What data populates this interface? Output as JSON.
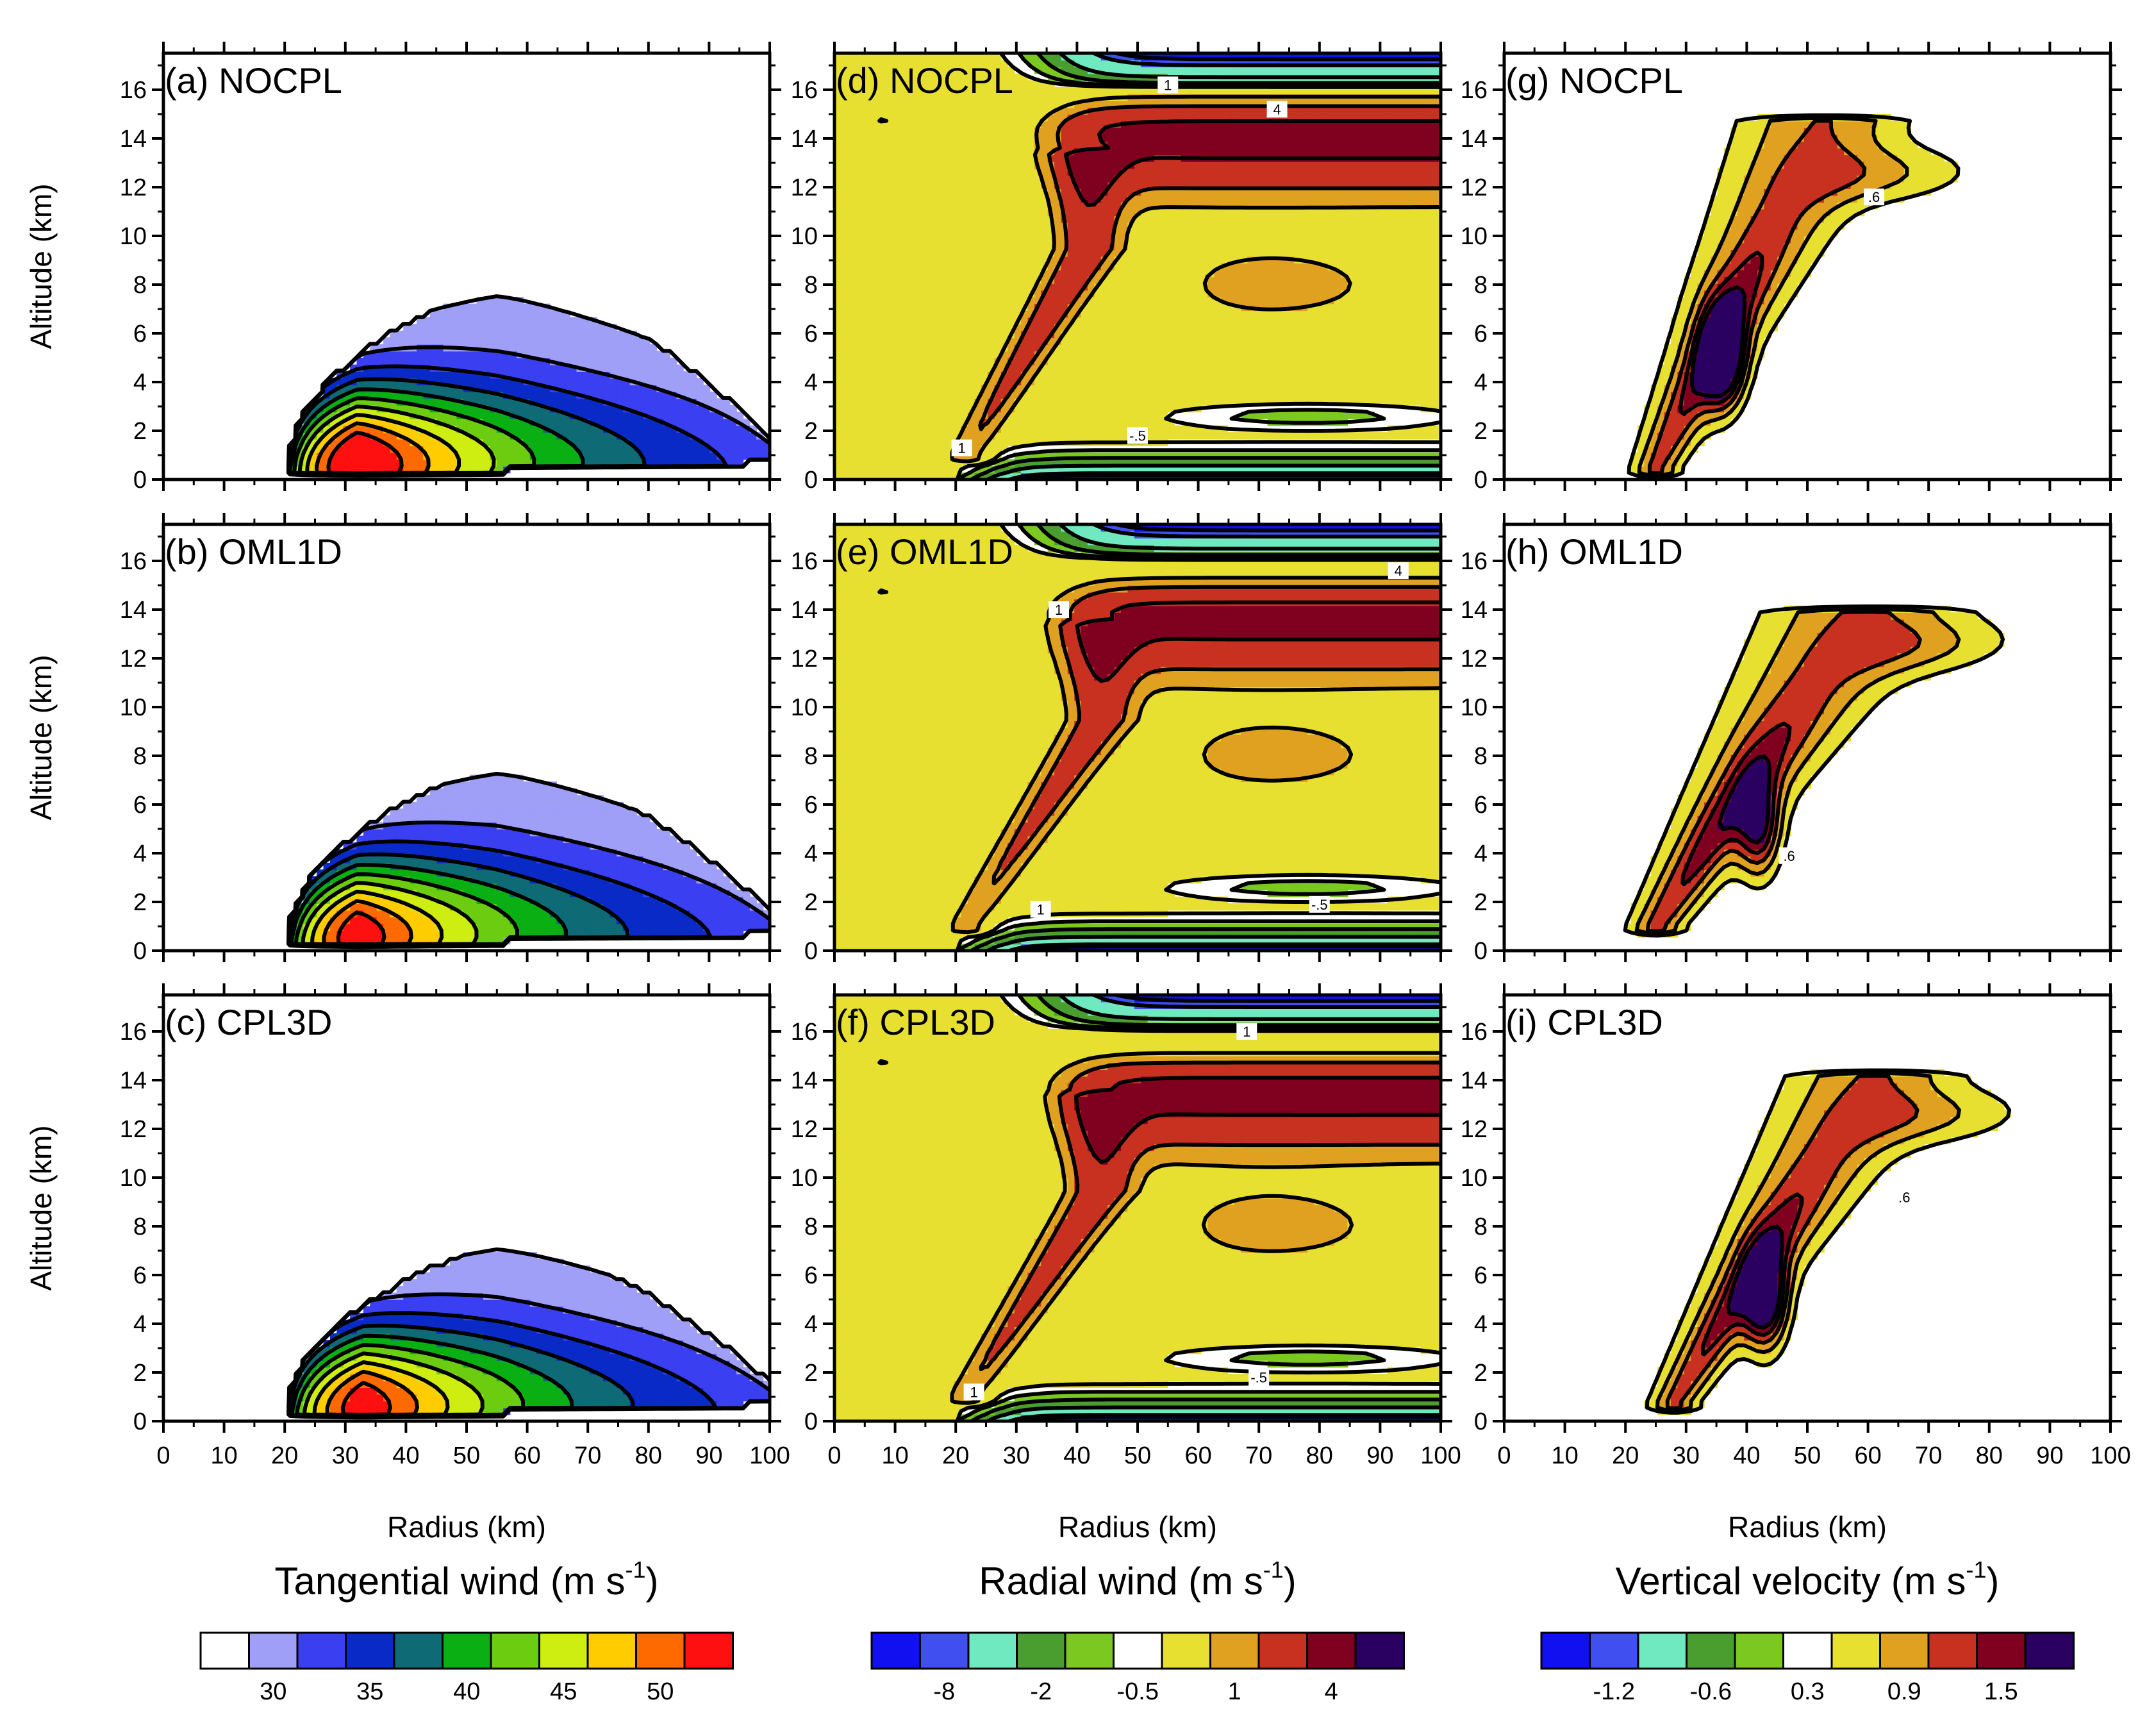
{
  "figure": {
    "panel_ids": [
      "a",
      "b",
      "c",
      "d",
      "e",
      "f",
      "g",
      "h",
      "i"
    ]
  },
  "chart_data": [
    {
      "id": "a",
      "type": "heatmap",
      "title": "(a) NOCPL",
      "variable": "tangential",
      "xlabel": "Radius (km)",
      "ylabel": "Altitude (km)",
      "xlim": [
        0,
        100
      ],
      "ylim": [
        0,
        17.5
      ],
      "x_ticks": [
        "0",
        "10",
        "20",
        "30",
        "40",
        "50",
        "60",
        "70",
        "80",
        "90",
        "100"
      ],
      "y_ticks": [
        "0",
        "2",
        "4",
        "6",
        "8",
        "10",
        "12",
        "14",
        "16"
      ],
      "features": [
        {
          "type": "dome",
          "r0": 20,
          "rpk": 32,
          "rout": 100,
          "zpk": 0.9,
          "ztop": 8.4,
          "zbot": 0.0,
          "level_min": 30,
          "level_max": 54
        }
      ]
    },
    {
      "id": "b",
      "type": "heatmap",
      "title": "(b) OML1D",
      "variable": "tangential",
      "xlabel": "Radius (km)",
      "ylabel": "Altitude (km)",
      "xlim": [
        0,
        100
      ],
      "ylim": [
        0,
        17.5
      ],
      "x_ticks": [
        "0",
        "10",
        "20",
        "30",
        "40",
        "50",
        "60",
        "70",
        "80",
        "90",
        "100"
      ],
      "y_ticks": [
        "0",
        "2",
        "4",
        "6",
        "8",
        "10",
        "12",
        "14",
        "16"
      ],
      "features": [
        {
          "type": "dome",
          "r0": 20,
          "rpk": 32,
          "rout": 100,
          "zpk": 0.9,
          "ztop": 8.0,
          "zbot": 0.0,
          "level_min": 30,
          "level_max": 52
        }
      ]
    },
    {
      "id": "c",
      "type": "heatmap",
      "title": "(c) CPL3D",
      "variable": "tangential",
      "xlabel": "Radius (km)",
      "ylabel": "Altitude (km)",
      "xlim": [
        0,
        100
      ],
      "ylim": [
        0,
        17.5
      ],
      "x_ticks": [
        "0",
        "10",
        "20",
        "30",
        "40",
        "50",
        "60",
        "70",
        "80",
        "90",
        "100"
      ],
      "y_ticks": [
        "0",
        "2",
        "4",
        "6",
        "8",
        "10",
        "12",
        "14",
        "16"
      ],
      "features": [
        {
          "type": "dome",
          "r0": 20,
          "rpk": 33,
          "rout": 100,
          "zpk": 0.9,
          "ztop": 7.6,
          "zbot": 0.0,
          "level_min": 30,
          "level_max": 52
        }
      ]
    },
    {
      "id": "d",
      "type": "heatmap",
      "title": "(d) NOCPL",
      "variable": "radial",
      "xlabel": "Radius (km)",
      "ylabel": "",
      "xlim": [
        0,
        100
      ],
      "ylim": [
        0,
        17.5
      ],
      "x_ticks": [
        "0",
        "10",
        "20",
        "30",
        "40",
        "50",
        "60",
        "70",
        "80",
        "90",
        "100"
      ],
      "y_ticks": [
        "0",
        "2",
        "4",
        "6",
        "8",
        "10",
        "12",
        "14",
        "16"
      ],
      "contour_labels": [
        {
          "text": "1",
          "x": 55,
          "z": 16.2
        },
        {
          "text": "4",
          "x": 73,
          "z": 15.2
        },
        {
          "text": "-.5",
          "x": 50,
          "z": 1.8
        },
        {
          "text": "1",
          "x": 21,
          "z": 1.3
        }
      ],
      "features": [
        {
          "type": "outflow",
          "zc": 14.2,
          "r_in": 38,
          "core": 4.8,
          "band": [
            10,
            18
          ]
        },
        {
          "type": "inflow",
          "core": -14,
          "zpeak": 0.2
        },
        {
          "type": "eyewall",
          "r1": 22,
          "z1": 1.2,
          "r2": 42,
          "z2": 9.5,
          "amp": 3.2
        }
      ]
    },
    {
      "id": "e",
      "type": "heatmap",
      "title": "(e) OML1D",
      "variable": "radial",
      "xlabel": "Radius (km)",
      "ylabel": "",
      "xlim": [
        0,
        100
      ],
      "ylim": [
        0,
        17.5
      ],
      "x_ticks": [
        "0",
        "10",
        "20",
        "30",
        "40",
        "50",
        "60",
        "70",
        "80",
        "90",
        "100"
      ],
      "y_ticks": [
        "0",
        "2",
        "4",
        "6",
        "8",
        "10",
        "12",
        "14",
        "16"
      ],
      "contour_labels": [
        {
          "text": "4",
          "x": 93,
          "z": 15.6
        },
        {
          "text": "1",
          "x": 37,
          "z": 14.0
        },
        {
          "text": "1",
          "x": 34,
          "z": 1.7
        },
        {
          "text": "-.5",
          "x": 80,
          "z": 1.9
        }
      ],
      "features": [
        {
          "type": "outflow",
          "zc": 13.8,
          "r_in": 40,
          "core": 4.8,
          "band": [
            9,
            17
          ]
        },
        {
          "type": "inflow",
          "core": -14,
          "zpeak": 0.2
        },
        {
          "type": "eyewall",
          "r1": 22,
          "z1": 1.2,
          "r2": 44,
          "z2": 9.5,
          "amp": 3.0
        }
      ]
    },
    {
      "id": "f",
      "type": "heatmap",
      "title": "(f) CPL3D",
      "variable": "radial",
      "xlabel": "Radius (km)",
      "ylabel": "",
      "xlim": [
        0,
        100
      ],
      "ylim": [
        0,
        17.5
      ],
      "x_ticks": [
        "0",
        "10",
        "20",
        "30",
        "40",
        "50",
        "60",
        "70",
        "80",
        "90",
        "100"
      ],
      "y_ticks": [
        "0",
        "2",
        "4",
        "6",
        "8",
        "10",
        "12",
        "14",
        "16"
      ],
      "contour_labels": [
        {
          "text": "1",
          "x": 68,
          "z": 16.0
        },
        {
          "text": "-.5",
          "x": 70,
          "z": 1.8
        },
        {
          "text": "1",
          "x": 23,
          "z": 1.2
        }
      ],
      "features": [
        {
          "type": "outflow",
          "zc": 13.6,
          "r_in": 40,
          "core": 4.8,
          "band": [
            9,
            17
          ]
        },
        {
          "type": "inflow",
          "core": -14,
          "zpeak": 0.2
        },
        {
          "type": "eyewall",
          "r1": 22,
          "z1": 1.2,
          "r2": 44,
          "z2": 9.5,
          "amp": 3.2
        }
      ]
    },
    {
      "id": "g",
      "type": "heatmap",
      "title": "(g) NOCPL",
      "variable": "vertical",
      "xlabel": "Radius (km)",
      "ylabel": "",
      "xlim": [
        0,
        100
      ],
      "ylim": [
        0,
        17.5
      ],
      "x_ticks": [
        "0",
        "10",
        "20",
        "30",
        "40",
        "50",
        "60",
        "70",
        "80",
        "90",
        "100"
      ],
      "y_ticks": [
        "0",
        "2",
        "4",
        "6",
        "8",
        "10",
        "12",
        "14",
        "16"
      ],
      "contour_labels": [
        {
          "text": ".6",
          "x": 61,
          "z": 11.6
        }
      ],
      "features": [
        {
          "type": "plume",
          "r1": 25,
          "z1": 0.5,
          "r2": 52,
          "z2": 14.5,
          "peak_r": 36,
          "peak_z": 5.0,
          "amp": 1.9,
          "width": 7
        }
      ]
    },
    {
      "id": "h",
      "type": "heatmap",
      "title": "(h) OML1D",
      "variable": "vertical",
      "xlabel": "Radius (km)",
      "ylabel": "",
      "xlim": [
        0,
        100
      ],
      "ylim": [
        0,
        17.5
      ],
      "x_ticks": [
        "0",
        "10",
        "20",
        "30",
        "40",
        "50",
        "60",
        "70",
        "80",
        "90",
        "100"
      ],
      "y_ticks": [
        "0",
        "2",
        "4",
        "6",
        "8",
        "10",
        "12",
        "14",
        "16"
      ],
      "contour_labels": [
        {
          "text": ".6",
          "x": 47,
          "z": 3.9
        }
      ],
      "features": [
        {
          "type": "plume",
          "r1": 25,
          "z1": 1.0,
          "r2": 58,
          "z2": 13.8,
          "peak_r": 42,
          "peak_z": 5.0,
          "amp": 1.3,
          "width": 8
        }
      ]
    },
    {
      "id": "i",
      "type": "heatmap",
      "title": "(i) CPL3D",
      "variable": "vertical",
      "xlabel": "Radius (km)",
      "ylabel": "",
      "xlim": [
        0,
        100
      ],
      "ylim": [
        0,
        17.5
      ],
      "x_ticks": [
        "0",
        "10",
        "20",
        "30",
        "40",
        "50",
        "60",
        "70",
        "80",
        "90",
        "100"
      ],
      "y_ticks": [
        "0",
        "2",
        "4",
        "6",
        "8",
        "10",
        "12",
        "14",
        "16"
      ],
      "contour_labels": [
        {
          "text": ".6",
          "x": 66,
          "z": 9.2
        }
      ],
      "features": [
        {
          "type": "plume",
          "r1": 28,
          "z1": 0.8,
          "r2": 60,
          "z2": 14.0,
          "peak_r": 43,
          "peak_z": 5.0,
          "amp": 1.8,
          "width": 7
        }
      ]
    }
  ],
  "colorbars": [
    {
      "id": "tangential",
      "title_main": "Tangential wind (m s",
      "title_sup": "-1",
      "title_close": ")",
      "colors": [
        "#ffffff",
        "#9f9ff8",
        "#3a3ff2",
        "#0a2ac8",
        "#0e6a74",
        "#0aaf14",
        "#6ccc10",
        "#cdee10",
        "#ffcc00",
        "#ff6a00",
        "#ff1010"
      ],
      "levels": [
        30,
        32.5,
        35,
        37.5,
        40,
        42.5,
        45,
        47.5,
        50,
        52.5
      ],
      "tick_labels": [
        "30",
        "35",
        "40",
        "45",
        "50"
      ]
    },
    {
      "id": "radial",
      "title_main": "Radial wind (m s",
      "title_sup": "-1",
      "title_close": ")",
      "colors": [
        "#1010f0",
        "#4050f0",
        "#70e8c0",
        "#4a9e30",
        "#7ac820",
        "#ffffff",
        "#e8e030",
        "#e0a020",
        "#c83020",
        "#800020",
        "#2a0060"
      ],
      "levels": [
        -10,
        -8,
        -4,
        -2,
        -1,
        -0.5,
        1,
        2,
        4,
        8
      ],
      "tick_labels": [
        "-8",
        "-2",
        "-0.5",
        "1",
        "4"
      ]
    },
    {
      "id": "vertical",
      "title_main": "Vertical velocity (m s",
      "title_sup": "-1",
      "title_close": ")",
      "colors": [
        "#1010f0",
        "#4050f0",
        "#70e8c0",
        "#4a9e30",
        "#7ac820",
        "#ffffff",
        "#e8e030",
        "#e0a020",
        "#c83020",
        "#800020",
        "#2a0060"
      ],
      "levels": [
        -1.5,
        -1.2,
        -0.9,
        -0.6,
        -0.3,
        0.3,
        0.6,
        0.9,
        1.2,
        1.5
      ],
      "tick_labels": [
        "-1.2",
        "-0.6",
        "0.3",
        "0.9",
        "1.5"
      ]
    }
  ]
}
